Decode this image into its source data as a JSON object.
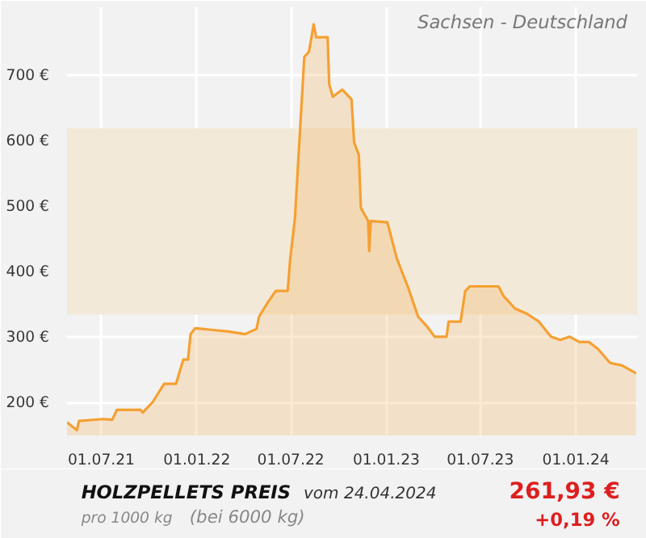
{
  "chart_data": {
    "type": "area",
    "title": "HOLZPELLETS PREIS",
    "subtitle": "Sachsen - Deutschland",
    "annotations": [
      "vom 24.04.2024",
      "pro 1000 kg",
      "(bei 6000 kg)",
      "261,93 €",
      "+0,19 %"
    ],
    "x": [
      "2021-04-26",
      "2021-05-15",
      "2021-05-19",
      "2021-07-04",
      "2021-07-22",
      "2021-07-31",
      "2021-09-15",
      "2021-09-19",
      "2021-10-08",
      "2021-10-30",
      "2021-11-22",
      "2021-12-06",
      "2021-12-15",
      "2021-12-20",
      "2021-12-29",
      "2022-03-03",
      "2022-04-04",
      "2022-04-26",
      "2022-05-01",
      "2022-05-19",
      "2022-06-02",
      "2022-06-25",
      "2022-06-30",
      "2022-07-09",
      "2022-07-18",
      "2022-07-27",
      "2022-08-05",
      "2022-08-10",
      "2022-08-14",
      "2022-08-19",
      "2022-09-10",
      "2022-09-13",
      "2022-09-20",
      "2022-10-08",
      "2022-10-26",
      "2022-10-31",
      "2022-11-09",
      "2022-11-13",
      "2022-11-27",
      "2022-11-29",
      "2022-12-02",
      "2023-01-03",
      "2023-01-21",
      "2023-02-13",
      "2023-03-03",
      "2023-03-21",
      "2023-04-04",
      "2023-04-27",
      "2023-05-01",
      "2023-05-24",
      "2023-06-02",
      "2023-06-11",
      "2023-08-05",
      "2023-08-15",
      "2023-09-06",
      "2023-09-29",
      "2023-10-22",
      "2023-11-14",
      "2023-12-02",
      "2023-12-20",
      "2024-01-08",
      "2024-01-26",
      "2024-02-13",
      "2024-03-07",
      "2024-03-30",
      "2024-04-26"
    ],
    "series": [
      {
        "color": "#f5a033",
        "values": [
          170,
          158,
          172,
          175,
          174,
          189,
          189,
          185,
          201,
          229,
          229,
          266,
          266,
          305,
          314,
          309,
          305,
          313,
          332,
          355,
          371,
          371,
          421,
          482,
          606,
          729,
          737,
          760,
          779,
          759,
          759,
          687,
          668,
          679,
          664,
          598,
          579,
          498,
          478,
          432,
          478,
          476,
          421,
          374,
          332,
          316,
          301,
          301,
          324,
          324,
          371,
          378,
          378,
          363,
          344,
          336,
          324,
          301,
          296,
          301,
          293,
          293,
          282,
          261,
          257,
          245
        ]
      }
    ],
    "xlim": [
      "2021-04-26",
      "2024-04-28"
    ],
    "ylim": [
      150,
      805
    ],
    "xticks": [
      {
        "value": "2021-07-01",
        "label": "01.07.21"
      },
      {
        "value": "2022-01-01",
        "label": "01.01.22"
      },
      {
        "value": "2022-07-01",
        "label": "01.07.22"
      },
      {
        "value": "2023-01-01",
        "label": "01.01.23"
      },
      {
        "value": "2023-07-01",
        "label": "01.07.23"
      },
      {
        "value": "2024-01-01",
        "label": "01.01.24"
      }
    ],
    "yticks": [
      {
        "value": 200,
        "label": "200 €"
      },
      {
        "value": 300,
        "label": "300 €"
      },
      {
        "value": 400,
        "label": "400 €"
      },
      {
        "value": 500,
        "label": "500 €"
      },
      {
        "value": 600,
        "label": "600 €"
      },
      {
        "value": 700,
        "label": "700 €"
      }
    ],
    "bands": [
      {
        "axis": "y",
        "from": 335,
        "to": 620,
        "color": "#f3e9d8"
      }
    ],
    "grid": true
  }
}
